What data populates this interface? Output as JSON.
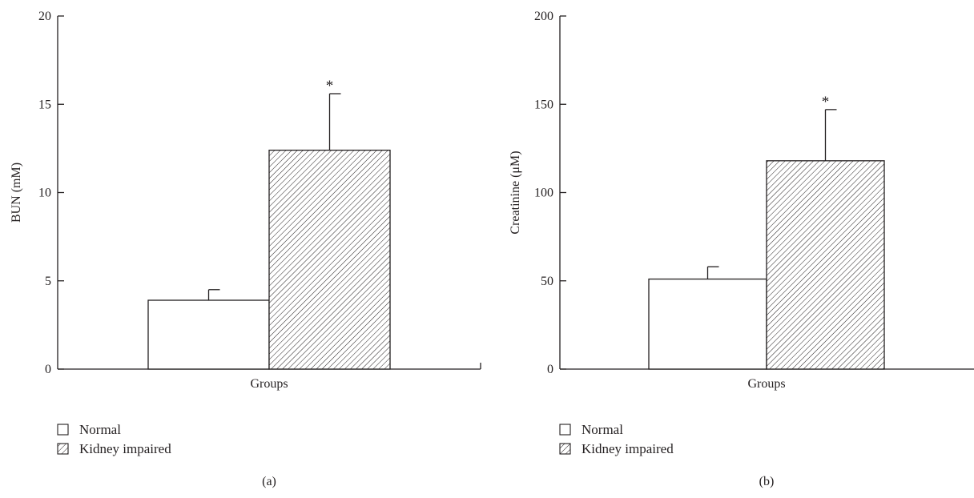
{
  "legend": {
    "items": [
      {
        "label": "Normal",
        "fill": "plain"
      },
      {
        "label": "Kidney impaired",
        "fill": "hatched"
      }
    ]
  },
  "colors": {
    "ink": "#231f20",
    "background": "#ffffff",
    "bar_fill": "#ffffff"
  },
  "chart_data": [
    {
      "type": "bar",
      "panel_label": "(a)",
      "xlabel": "Groups",
      "ylabel": "BUN (mM)",
      "ylim": [
        0,
        20
      ],
      "yticks": [
        0,
        5,
        10,
        15,
        20
      ],
      "grid": false,
      "legend_position": "bottom-left",
      "series": [
        {
          "name": "Normal",
          "values": [
            3.9
          ],
          "error": [
            0.6
          ],
          "significance": ""
        },
        {
          "name": "Kidney impaired",
          "values": [
            12.4
          ],
          "error": [
            3.2
          ],
          "significance": "*"
        }
      ]
    },
    {
      "type": "bar",
      "panel_label": "(b)",
      "xlabel": "Groups",
      "ylabel": "Creatinine (μM)",
      "ylim": [
        0,
        200
      ],
      "yticks": [
        0,
        50,
        100,
        150,
        200
      ],
      "grid": false,
      "legend_position": "bottom-left",
      "series": [
        {
          "name": "Normal",
          "values": [
            51
          ],
          "error": [
            7
          ],
          "significance": ""
        },
        {
          "name": "Kidney impaired",
          "values": [
            118
          ],
          "error": [
            29
          ],
          "significance": "*"
        }
      ]
    }
  ]
}
